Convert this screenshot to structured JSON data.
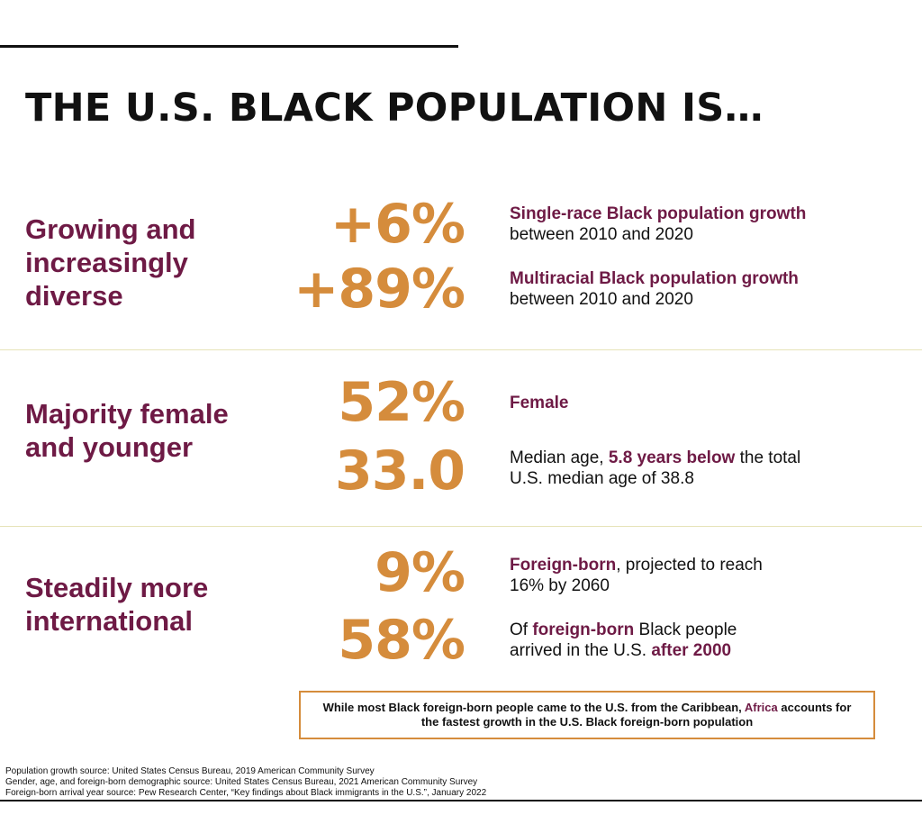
{
  "title": "THE U.S. BLACK POPULATION IS…",
  "sections": [
    {
      "heading": "Growing and increasingly diverse",
      "stats": [
        {
          "value": "+6%",
          "label": "Single-race Black population growth",
          "rest": "between 2010 and 2020"
        },
        {
          "value": "+89%",
          "label": "Multiracial Black population growth",
          "rest": "between 2010 and 2020"
        }
      ]
    },
    {
      "heading": "Majority female and younger",
      "stats": [
        {
          "value": "52%",
          "label": "Female"
        },
        {
          "value": "33.0",
          "pre": "Median age, ",
          "label": "5.8 years below",
          "rest": " the total U.S. median age of 38.8"
        }
      ]
    },
    {
      "heading": "Steadily more international",
      "stats": [
        {
          "value": "9%",
          "label": "Foreign-born",
          "rest": ", projected to reach 16% by 2060"
        },
        {
          "value": "58%",
          "pre": "Of ",
          "label": "foreign-born",
          "mid": " Black people arrived in the U.S. ",
          "label2": "after 2000"
        }
      ]
    }
  ],
  "callout": {
    "pre": "While most Black foreign-born people came to the U.S. from the Caribbean, ",
    "highlight": "Africa",
    "post": " accounts for the fastest growth in the U.S. Black foreign-born population"
  },
  "sources": [
    "Population growth source: United States Census Bureau, 2019 American Community Survey",
    "Gender, age, and foreign-born demographic source: United States Census Bureau, 2021 American Community Survey",
    "Foreign-born arrival year source: Pew Research Center, “Key findings about Black immigrants in the U.S.”, January 2022"
  ],
  "colors": {
    "accent": "#6e1a45",
    "stat": "#d58c3c",
    "divider": "#e6e3b8"
  }
}
